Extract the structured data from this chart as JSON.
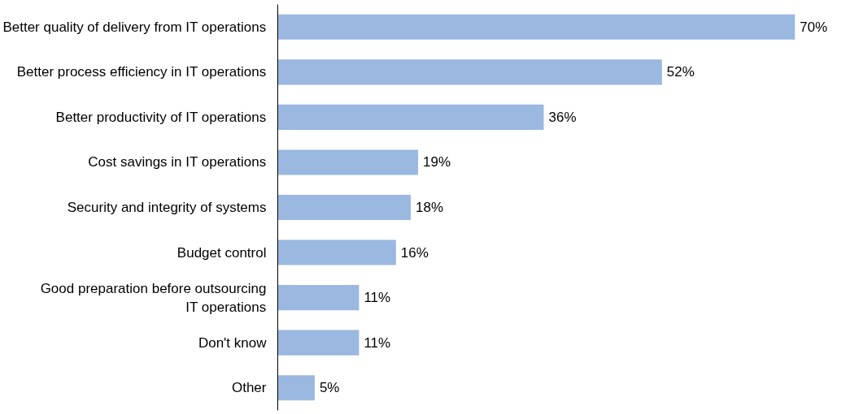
{
  "chart_data": {
    "type": "bar",
    "orientation": "horizontal",
    "categories": [
      "Better quality of delivery from IT operations",
      "Better process efficiency in IT operations",
      "Better productivity of IT operations",
      "Cost savings in IT operations",
      "Security and integrity of systems",
      "Budget control",
      "Good preparation before outsourcing\nIT operations",
      "Don't know",
      "Other"
    ],
    "values": [
      70,
      52,
      36,
      19,
      18,
      16,
      11,
      11,
      5
    ],
    "value_labels": [
      "70%",
      "52%",
      "36%",
      "19%",
      "18%",
      "16%",
      "11%",
      "11%",
      "5%"
    ],
    "color": "#9bb8e0",
    "grid": false,
    "tick_labels": "y"
  }
}
